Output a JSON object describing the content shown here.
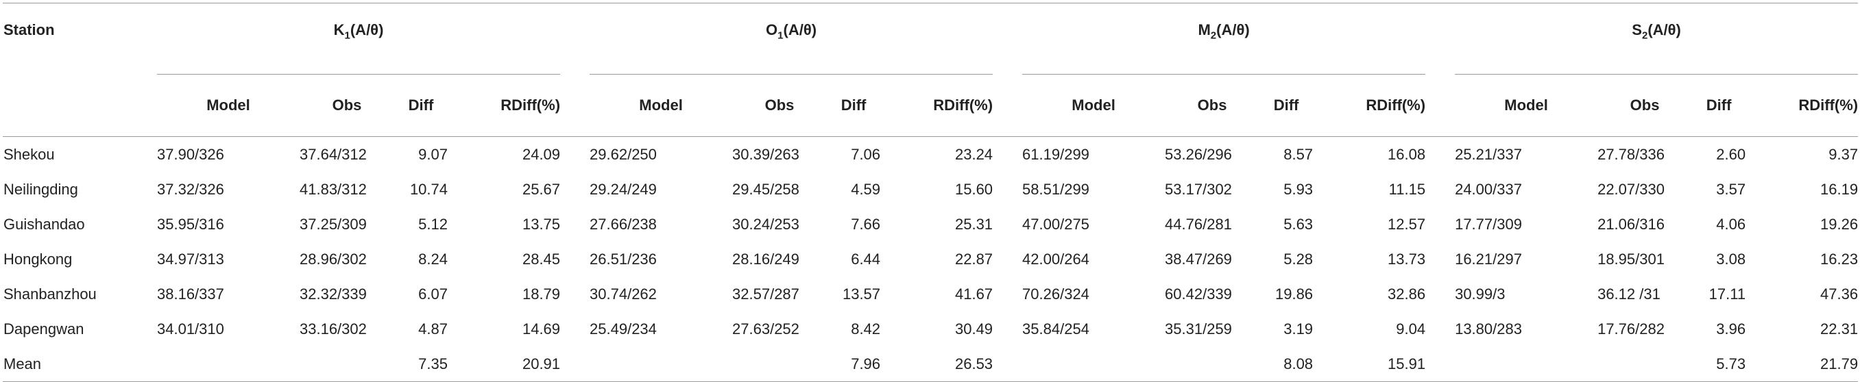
{
  "header": {
    "station": "Station",
    "columns": [
      "Model",
      "Obs",
      "Diff",
      "RDiff(%)"
    ]
  },
  "groups": [
    {
      "symbol": "K",
      "sub": "1",
      "unit": "(A/θ)"
    },
    {
      "symbol": "O",
      "sub": "1",
      "unit": "(A/θ)"
    },
    {
      "symbol": "M",
      "sub": "2",
      "unit": "(A/θ)"
    },
    {
      "symbol": "S",
      "sub": "2",
      "unit": "(A/θ)"
    }
  ],
  "rows": [
    {
      "station": "Shekou",
      "cells": [
        "37.90/326",
        "37.64/312",
        "9.07",
        "24.09",
        "29.62/250",
        "30.39/263",
        "7.06",
        "23.24",
        "61.19/299",
        "53.26/296",
        "8.57",
        "16.08",
        "25.21/337",
        "27.78/336",
        "2.60",
        "9.37"
      ]
    },
    {
      "station": "Neilingding",
      "cells": [
        "37.32/326",
        "41.83/312",
        "10.74",
        "25.67",
        "29.24/249",
        "29.45/258",
        "4.59",
        "15.60",
        "58.51/299",
        "53.17/302",
        "5.93",
        "11.15",
        "24.00/337",
        "22.07/330",
        "3.57",
        "16.19"
      ]
    },
    {
      "station": "Guishandao",
      "cells": [
        "35.95/316",
        "37.25/309",
        "5.12",
        "13.75",
        "27.66/238",
        "30.24/253",
        "7.66",
        "25.31",
        "47.00/275",
        "44.76/281",
        "5.63",
        "12.57",
        "17.77/309",
        "21.06/316",
        "4.06",
        "19.26"
      ]
    },
    {
      "station": "Hongkong",
      "cells": [
        "34.97/313",
        "28.96/302",
        "8.24",
        "28.45",
        "26.51/236",
        "28.16/249",
        "6.44",
        "22.87",
        "42.00/264",
        "38.47/269",
        "5.28",
        "13.73",
        "16.21/297",
        "18.95/301",
        "3.08",
        "16.23"
      ]
    },
    {
      "station": "Shanbanzhou",
      "cells": [
        "38.16/337",
        "32.32/339",
        "6.07",
        "18.79",
        "30.74/262",
        "32.57/287",
        "13.57",
        "41.67",
        "70.26/324",
        "60.42/339",
        "19.86",
        "32.86",
        "30.99/3",
        "36.12 /31",
        "17.11",
        "47.36"
      ]
    },
    {
      "station": "Dapengwan",
      "cells": [
        "34.01/310",
        "33.16/302",
        "4.87",
        "14.69",
        "25.49/234",
        "27.63/252",
        "8.42",
        "30.49",
        "35.84/254",
        "35.31/259",
        "3.19",
        "9.04",
        "13.80/283",
        "17.76/282",
        "3.96",
        "22.31"
      ]
    },
    {
      "station": "Mean",
      "cells": [
        null,
        null,
        "7.35",
        "20.91",
        null,
        null,
        "7.96",
        "26.53",
        null,
        null,
        "8.08",
        "15.91",
        null,
        null,
        "5.73",
        "21.79"
      ]
    }
  ]
}
